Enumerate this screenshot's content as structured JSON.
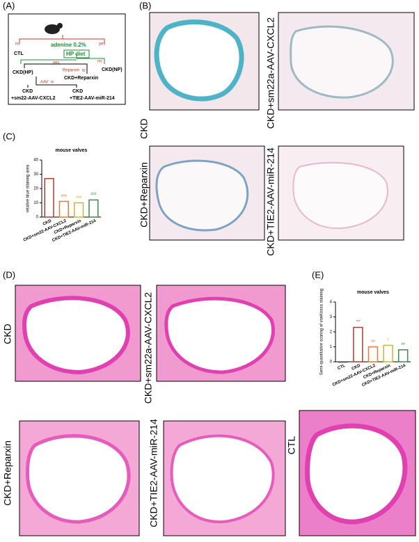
{
  "panel_labels": [
    "(A)",
    "(B)",
    "(C)",
    "(D)",
    "(E)"
  ],
  "diagram": {
    "nodes": [
      "no",
      "adenine 0.2%",
      "yes",
      "CTL",
      "HP diet",
      "yes",
      "no",
      "CKD(NP)",
      "CKD(HP)",
      "Reparxin",
      "ip",
      "CKD+Reparxin",
      "AAV",
      "iv",
      "CKD",
      "+sm22-AAV-CXCL2",
      "CKD",
      "+TIE2-AAV-miR-214"
    ]
  },
  "panel_b_labels": [
    "CKD",
    "CKD+sm22a-AAV-CXCL2",
    "CKD+Reparxin",
    "CKD+TIE2-AAV-miR-214"
  ],
  "panel_d_labels": [
    "CKD",
    "CKD+sm22a-AAV-CXCL2",
    "CKD+Reparxin",
    "CKD+TIE2-AAV-miR-214",
    "CTL"
  ],
  "chart_data": [
    {
      "type": "bar",
      "title": "mouse valves",
      "y_label": "relative blue staining area",
      "categories": [
        "CKD",
        "CKD+sm22-AAV-CXCL2",
        "CKD+Reparxin",
        "CKD+TIE2-AAV-miR-214"
      ],
      "values": [
        27,
        11,
        10,
        12
      ],
      "colors": [
        "#b03a2e",
        "#e07b39",
        "#c9b53a",
        "#3a8a4a"
      ],
      "annotations": [
        null,
        "###",
        "###",
        "###"
      ],
      "ylim": [
        0,
        40
      ],
      "yticks": [
        0,
        10,
        20,
        30,
        40
      ]
    },
    {
      "type": "bar",
      "title": "mouse valves",
      "y_label": "Semi-quantitative scoring of vonKossa staining",
      "categories": [
        "CTL",
        "CKD",
        "CKD+sm22-AAV-CXCL2",
        "CKD+Reparxin",
        "CKD+TIE2-AAV-miR-214"
      ],
      "values": [
        0,
        2.3,
        1.0,
        1.1,
        0.8
      ],
      "colors": [
        "#555555",
        "#b03a2e",
        "#e07b39",
        "#c9b53a",
        "#3a8a4a"
      ],
      "annotations": [
        null,
        "***",
        "##",
        "#",
        "##"
      ],
      "ylim": [
        0,
        4
      ],
      "yticks": [
        0,
        1,
        2,
        3,
        4
      ]
    }
  ]
}
